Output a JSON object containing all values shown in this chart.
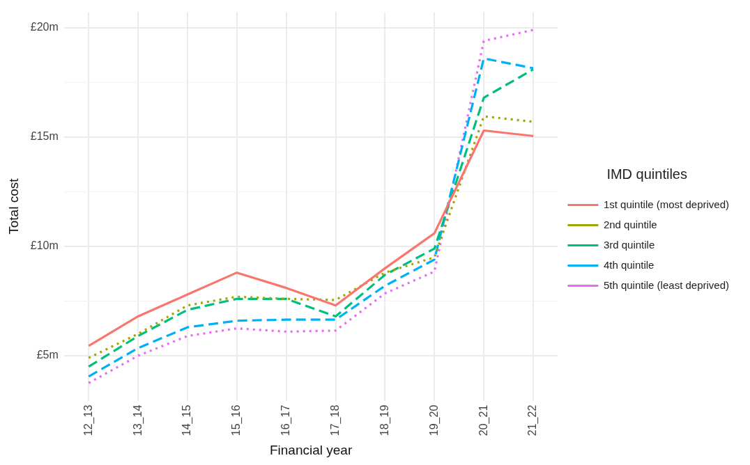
{
  "chart_data": {
    "type": "line",
    "xlabel": "Financial year",
    "ylabel": "Total cost",
    "legend_title": "IMD quintiles",
    "legend": "right",
    "grid": true,
    "marker": "none",
    "categories": [
      "12_13",
      "13_14",
      "14_15",
      "15_16",
      "16_17",
      "17_18",
      "18_19",
      "19_20",
      "20_21",
      "21_22"
    ],
    "ylim": [
      2.94,
      20.71
    ],
    "yticks": [
      {
        "value": 5,
        "label": "£5m"
      },
      {
        "value": 7.5,
        "label": null
      },
      {
        "value": 10,
        "label": "£10m"
      },
      {
        "value": 12.5,
        "label": null
      },
      {
        "value": 15,
        "label": "£15m"
      },
      {
        "value": 17.5,
        "label": null
      },
      {
        "value": 20,
        "label": "£20m"
      }
    ],
    "series": [
      {
        "name": "1st quintile (most deprived)",
        "color": "#f8766d",
        "line_style": "solid",
        "values": [
          5.45,
          6.8,
          7.8,
          8.8,
          8.1,
          7.3,
          9.0,
          10.6,
          15.3,
          15.05
        ]
      },
      {
        "name": "2nd quintile",
        "color": "#a3a500",
        "line_style": "dotted",
        "values": [
          4.9,
          6.0,
          7.3,
          7.7,
          7.6,
          7.55,
          8.8,
          9.5,
          15.95,
          15.7
        ]
      },
      {
        "name": "3rd quintile",
        "color": "#00bf7d",
        "line_style": "dashed",
        "values": [
          4.5,
          5.9,
          7.1,
          7.6,
          7.6,
          6.8,
          8.7,
          9.9,
          16.8,
          18.1
        ]
      },
      {
        "name": "4th quintile",
        "color": "#00b0f6",
        "line_style": "dashed",
        "values": [
          4.05,
          5.35,
          6.3,
          6.6,
          6.65,
          6.65,
          8.2,
          9.4,
          18.6,
          18.15
        ]
      },
      {
        "name": "5th quintile (least deprived)",
        "color": "#e76bf3",
        "line_style": "dotted",
        "values": [
          3.75,
          5.0,
          5.9,
          6.25,
          6.1,
          6.15,
          7.85,
          8.85,
          19.4,
          19.9
        ]
      }
    ]
  }
}
